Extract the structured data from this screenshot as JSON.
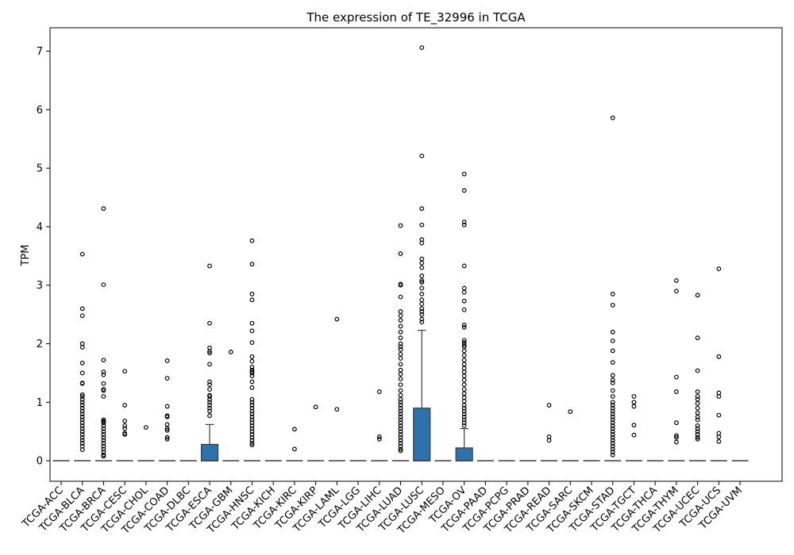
{
  "chart_data": {
    "type": "box",
    "title": "The expression of TE_32996 in TCGA",
    "xlabel": "",
    "ylabel": "TPM",
    "ylim": [
      -0.35,
      7.4
    ],
    "yticks": [
      0,
      1,
      2,
      3,
      4,
      5,
      6,
      7
    ],
    "box_color": "#2e72ab",
    "grid": false,
    "categories": [
      "TCGA-ACC",
      "TCGA-BLCA",
      "TCGA-BRCA",
      "TCGA-CESC",
      "TCGA-CHOL",
      "TCGA-COAD",
      "TCGA-DLBC",
      "TCGA-ESCA",
      "TCGA-GBM",
      "TCGA-HNSC",
      "TCGA-KICH",
      "TCGA-KIRC",
      "TCGA-KIRP",
      "TCGA-LAML",
      "TCGA-LGG",
      "TCGA-LIHC",
      "TCGA-LUAD",
      "TCGA-LUSC",
      "TCGA-MESO",
      "TCGA-OV",
      "TCGA-PAAD",
      "TCGA-PCPG",
      "TCGA-PRAD",
      "TCGA-READ",
      "TCGA-SARC",
      "TCGA-SKCM",
      "TCGA-STAD",
      "TCGA-TGCT",
      "TCGA-THCA",
      "TCGA-THYM",
      "TCGA-UCEC",
      "TCGA-UCS",
      "TCGA-UVM"
    ],
    "boxes": [
      {
        "q1": 0,
        "median": 0,
        "q3": 0,
        "whisker_low": 0,
        "whisker_high": 0,
        "outliers": []
      },
      {
        "q1": 0,
        "median": 0,
        "q3": 0,
        "whisker_low": 0,
        "whisker_high": 0,
        "outliers": [
          3.53,
          2.6,
          2.48,
          2.0,
          1.94,
          1.67,
          1.5,
          1.33,
          1.32,
          1.13,
          1.1,
          1.05,
          1.0,
          0.95,
          0.9,
          0.85,
          0.8,
          0.75,
          0.7,
          0.65,
          0.6,
          0.55,
          0.5,
          0.45,
          0.4,
          0.35,
          0.3,
          0.25,
          0.19
        ]
      },
      {
        "q1": 0,
        "median": 0,
        "q3": 0,
        "whisker_low": 0,
        "whisker_high": 0,
        "outliers": [
          4.31,
          3.01,
          1.72,
          1.52,
          1.47,
          1.32,
          1.22,
          1.2,
          1.1,
          0.7,
          0.68,
          0.66,
          0.65,
          0.6,
          0.55,
          0.5,
          0.45,
          0.4,
          0.35,
          0.3,
          0.25,
          0.2,
          0.15,
          0.1,
          0.08
        ]
      },
      {
        "q1": 0,
        "median": 0,
        "q3": 0,
        "whisker_low": 0,
        "whisker_high": 0,
        "outliers": [
          1.53,
          0.95,
          0.68,
          0.6,
          0.55,
          0.47,
          0.45
        ]
      },
      {
        "q1": 0,
        "median": 0,
        "q3": 0,
        "whisker_low": 0,
        "whisker_high": 0,
        "outliers": [
          0.57
        ]
      },
      {
        "q1": 0,
        "median": 0,
        "q3": 0,
        "whisker_low": 0,
        "whisker_high": 0,
        "outliers": [
          1.71,
          1.41,
          0.93,
          0.77,
          0.75,
          0.62,
          0.55,
          0.52,
          0.4,
          0.37
        ]
      },
      {
        "q1": 0,
        "median": 0,
        "q3": 0,
        "whisker_low": 0,
        "whisker_high": 0,
        "outliers": []
      },
      {
        "q1": 0,
        "median": 0,
        "q3": 0.28,
        "whisker_low": 0,
        "whisker_high": 0.62,
        "outliers": [
          3.33,
          2.35,
          1.93,
          1.87,
          1.84,
          1.65,
          1.35,
          1.3,
          1.22,
          1.12,
          1.1,
          1.05,
          1.0,
          0.95,
          0.9,
          0.85,
          0.77
        ]
      },
      {
        "q1": 0,
        "median": 0,
        "q3": 0,
        "whisker_low": 0,
        "whisker_high": 0,
        "outliers": [
          1.86
        ]
      },
      {
        "q1": 0,
        "median": 0,
        "q3": 0,
        "whisker_low": 0,
        "whisker_high": 0,
        "outliers": [
          3.76,
          3.36,
          2.85,
          2.75,
          2.35,
          2.22,
          2.02,
          1.78,
          1.7,
          1.6,
          1.55,
          1.52,
          1.5,
          1.45,
          1.35,
          1.25,
          1.05,
          1.0,
          0.95,
          0.9,
          0.85,
          0.8,
          0.75,
          0.7,
          0.65,
          0.6,
          0.55,
          0.5,
          0.45,
          0.4,
          0.35,
          0.3,
          0.27
        ]
      },
      {
        "q1": 0,
        "median": 0,
        "q3": 0,
        "whisker_low": 0,
        "whisker_high": 0,
        "outliers": []
      },
      {
        "q1": 0,
        "median": 0,
        "q3": 0,
        "whisker_low": 0,
        "whisker_high": 0,
        "outliers": [
          0.54,
          0.2
        ]
      },
      {
        "q1": 0,
        "median": 0,
        "q3": 0,
        "whisker_low": 0,
        "whisker_high": 0,
        "outliers": [
          0.92
        ]
      },
      {
        "q1": 0,
        "median": 0,
        "q3": 0,
        "whisker_low": 0,
        "whisker_high": 0,
        "outliers": [
          2.42,
          0.88
        ]
      },
      {
        "q1": 0,
        "median": 0,
        "q3": 0,
        "whisker_low": 0,
        "whisker_high": 0,
        "outliers": []
      },
      {
        "q1": 0,
        "median": 0,
        "q3": 0,
        "whisker_low": 0,
        "whisker_high": 0,
        "outliers": [
          1.18,
          0.41,
          0.37
        ]
      },
      {
        "q1": 0,
        "median": 0,
        "q3": 0,
        "whisker_low": 0,
        "whisker_high": 0,
        "outliers": [
          4.02,
          3.54,
          3.02,
          3.0,
          2.8,
          2.55,
          2.48,
          2.4,
          2.3,
          2.2,
          2.1,
          2.0,
          1.95,
          1.9,
          1.82,
          1.75,
          1.65,
          1.55,
          1.48,
          1.4,
          1.3,
          1.2,
          1.12,
          1.05,
          1.0,
          0.95,
          0.9,
          0.85,
          0.8,
          0.75,
          0.7,
          0.65,
          0.6,
          0.55,
          0.5,
          0.45,
          0.4,
          0.35,
          0.3,
          0.25,
          0.2,
          0.17
        ]
      },
      {
        "q1": 0,
        "median": 0,
        "q3": 0.9,
        "whisker_low": 0,
        "whisker_high": 2.23,
        "outliers": [
          7.06,
          5.21,
          4.31,
          4.03,
          3.78,
          3.72,
          3.45,
          3.38,
          3.3,
          3.16,
          3.08,
          3.05,
          2.95,
          2.85,
          2.75,
          2.68,
          2.6,
          2.55,
          2.5,
          2.42,
          2.37
        ]
      },
      {
        "q1": 0,
        "median": 0,
        "q3": 0,
        "whisker_low": 0,
        "whisker_high": 0,
        "outliers": []
      },
      {
        "q1": 0,
        "median": 0,
        "q3": 0.22,
        "whisker_low": 0,
        "whisker_high": 0.55,
        "outliers": [
          4.9,
          4.62,
          4.08,
          4.03,
          3.33,
          2.95,
          2.88,
          2.73,
          2.58,
          2.32,
          2.28,
          2.06,
          2.02,
          1.98,
          1.95,
          1.88,
          1.8,
          1.72,
          1.65,
          1.58,
          1.52,
          1.45,
          1.38,
          1.3,
          1.22,
          1.15,
          1.08,
          1.02,
          0.95,
          0.9,
          0.85,
          0.8,
          0.75,
          0.7,
          0.65,
          0.6
        ]
      },
      {
        "q1": 0,
        "median": 0,
        "q3": 0,
        "whisker_low": 0,
        "whisker_high": 0,
        "outliers": []
      },
      {
        "q1": 0,
        "median": 0,
        "q3": 0,
        "whisker_low": 0,
        "whisker_high": 0,
        "outliers": []
      },
      {
        "q1": 0,
        "median": 0,
        "q3": 0,
        "whisker_low": 0,
        "whisker_high": 0,
        "outliers": []
      },
      {
        "q1": 0,
        "median": 0,
        "q3": 0,
        "whisker_low": 0,
        "whisker_high": 0,
        "outliers": [
          0.95,
          0.41,
          0.35
        ]
      },
      {
        "q1": 0,
        "median": 0,
        "q3": 0,
        "whisker_low": 0,
        "whisker_high": 0,
        "outliers": [
          0.84
        ]
      },
      {
        "q1": 0,
        "median": 0,
        "q3": 0,
        "whisker_low": 0,
        "whisker_high": 0,
        "outliers": []
      },
      {
        "q1": 0,
        "median": 0,
        "q3": 0,
        "whisker_low": 0,
        "whisker_high": 0,
        "outliers": [
          5.86,
          2.85,
          2.66,
          2.2,
          2.05,
          1.88,
          1.68,
          1.46,
          1.38,
          1.33,
          1.2,
          1.1,
          1.0,
          0.95,
          0.9,
          0.85,
          0.8,
          0.75,
          0.7,
          0.65,
          0.6,
          0.55,
          0.5,
          0.45,
          0.4,
          0.35,
          0.3,
          0.25,
          0.2,
          0.15,
          0.1
        ]
      },
      {
        "q1": 0,
        "median": 0,
        "q3": 0,
        "whisker_low": 0,
        "whisker_high": 0,
        "outliers": [
          1.1,
          1.0,
          0.93,
          0.61,
          0.44
        ]
      },
      {
        "q1": 0,
        "median": 0,
        "q3": 0,
        "whisker_low": 0,
        "whisker_high": 0,
        "outliers": []
      },
      {
        "q1": 0,
        "median": 0,
        "q3": 0,
        "whisker_low": 0,
        "whisker_high": 0,
        "outliers": [
          3.08,
          2.9,
          1.43,
          1.18,
          0.65,
          0.43,
          0.4,
          0.32
        ]
      },
      {
        "q1": 0,
        "median": 0,
        "q3": 0,
        "whisker_low": 0,
        "whisker_high": 0,
        "outliers": [
          2.83,
          2.1,
          1.54,
          1.18,
          1.1,
          1.05,
          0.98,
          0.9,
          0.82,
          0.75,
          0.7,
          0.6,
          0.55,
          0.5,
          0.45,
          0.4,
          0.37
        ]
      },
      {
        "q1": 0,
        "median": 0,
        "q3": 0,
        "whisker_low": 0,
        "whisker_high": 0,
        "outliers": [
          3.28,
          1.78,
          1.16,
          1.1,
          0.78,
          0.47,
          0.41,
          0.33
        ]
      },
      {
        "q1": 0,
        "median": 0,
        "q3": 0,
        "whisker_low": 0,
        "whisker_high": 0,
        "outliers": []
      }
    ]
  }
}
